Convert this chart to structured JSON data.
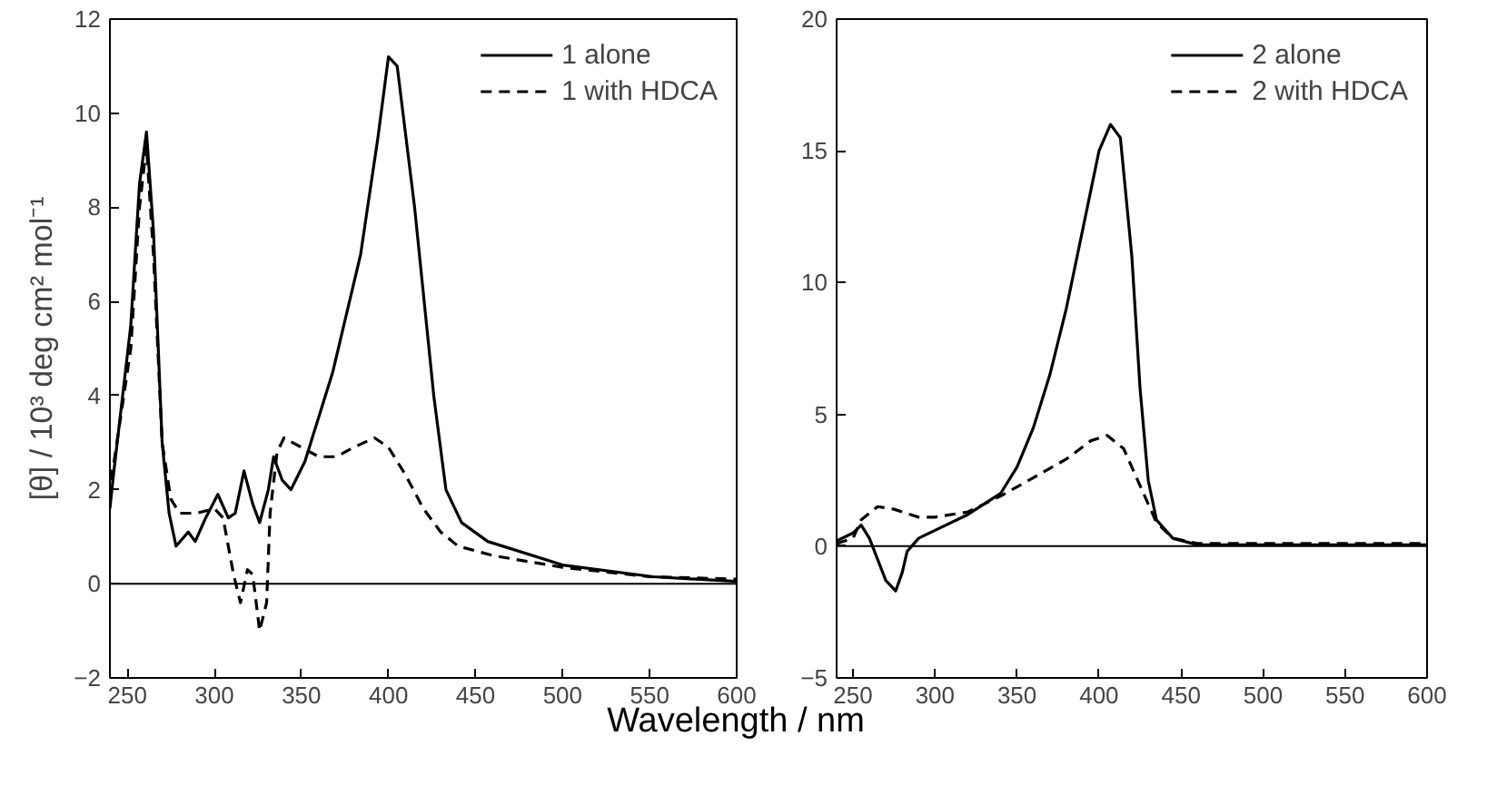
{
  "chart_data": [
    {
      "type": "line",
      "xlabel": "Wavelength / nm",
      "ylabel": "[θ] / 10³ deg cm² mol⁻¹",
      "xlim": [
        240,
        600
      ],
      "xticks": [
        250,
        300,
        350,
        400,
        450,
        500,
        550,
        600
      ],
      "ylim": [
        -2,
        12
      ],
      "yticks": [
        -2,
        0,
        2,
        4,
        6,
        8,
        10,
        12
      ],
      "grid": false,
      "legend": "top right",
      "ref_lines": [
        {
          "axis": "y",
          "value": 0,
          "color": "#000000"
        }
      ],
      "series": [
        {
          "name": "1 alone",
          "color": "#000000",
          "line_style": "solid",
          "x": [
            240,
            242,
            252,
            257,
            261,
            265,
            270,
            274,
            278,
            285,
            289,
            295,
            302,
            308,
            312,
            317,
            322,
            326,
            331,
            334,
            339,
            344,
            352,
            368,
            384,
            394,
            400,
            405,
            415,
            426,
            433,
            442,
            457,
            500,
            552,
            600
          ],
          "values": [
            1.6,
            2.3,
            5.5,
            8.5,
            9.6,
            7.5,
            3.0,
            1.5,
            0.8,
            1.1,
            0.9,
            1.4,
            1.9,
            1.4,
            1.5,
            2.4,
            1.7,
            1.3,
            2.0,
            2.7,
            2.2,
            2.0,
            2.6,
            4.5,
            7.0,
            9.5,
            11.2,
            11.0,
            8.0,
            4.0,
            2.0,
            1.3,
            0.9,
            0.4,
            0.15,
            0.05
          ]
        },
        {
          "name": "1 with HDCA",
          "color": "#000000",
          "line_style": "dashed",
          "x": [
            240,
            242,
            252,
            257,
            261,
            265,
            270,
            275,
            280,
            290,
            300,
            305,
            311,
            315,
            319,
            322,
            326,
            330,
            332,
            336,
            340,
            350,
            360,
            370,
            380,
            392,
            400,
            410,
            420,
            430,
            440,
            460,
            500,
            550,
            600
          ],
          "values": [
            2.2,
            2.5,
            5.0,
            8.0,
            9.3,
            7.0,
            3.0,
            1.8,
            1.5,
            1.5,
            1.6,
            1.4,
            0.2,
            -0.4,
            0.3,
            0.2,
            -1.0,
            -0.4,
            1.5,
            2.8,
            3.1,
            2.9,
            2.7,
            2.7,
            2.9,
            3.1,
            2.9,
            2.3,
            1.6,
            1.1,
            0.8,
            0.6,
            0.35,
            0.15,
            0.1
          ]
        }
      ]
    },
    {
      "type": "line",
      "xlim": [
        240,
        600
      ],
      "xticks": [
        250,
        300,
        350,
        400,
        450,
        500,
        550,
        600
      ],
      "ylim": [
        -5,
        20
      ],
      "yticks": [
        -5,
        0,
        5,
        10,
        15,
        20
      ],
      "grid": false,
      "legend": "top right",
      "ref_lines": [
        {
          "axis": "y",
          "value": 0,
          "color": "#000000"
        }
      ],
      "series": [
        {
          "name": "2 alone",
          "color": "#000000",
          "line_style": "solid",
          "x": [
            240,
            250,
            255,
            260,
            265,
            270,
            276,
            280,
            283,
            290,
            300,
            320,
            340,
            350,
            360,
            370,
            380,
            390,
            400,
            407,
            413,
            420,
            425,
            430,
            435,
            445,
            460,
            600
          ],
          "values": [
            0.2,
            0.5,
            0.8,
            0.3,
            -0.5,
            -1.3,
            -1.7,
            -1.0,
            -0.2,
            0.3,
            0.6,
            1.2,
            2.0,
            3.0,
            4.5,
            6.5,
            9.0,
            12.0,
            15.0,
            16.0,
            15.5,
            11.0,
            6.0,
            2.5,
            1.0,
            0.3,
            0.05,
            0.05
          ]
        },
        {
          "name": "2 with HDCA",
          "color": "#000000",
          "line_style": "dashed",
          "x": [
            240,
            250,
            255,
            265,
            275,
            290,
            300,
            320,
            340,
            360,
            380,
            395,
            405,
            415,
            425,
            435,
            445,
            460,
            600
          ],
          "values": [
            0.1,
            0.3,
            1.0,
            1.5,
            1.4,
            1.1,
            1.1,
            1.3,
            1.9,
            2.6,
            3.3,
            4.0,
            4.2,
            3.7,
            2.3,
            0.9,
            0.3,
            0.1,
            0.1
          ]
        }
      ]
    }
  ]
}
